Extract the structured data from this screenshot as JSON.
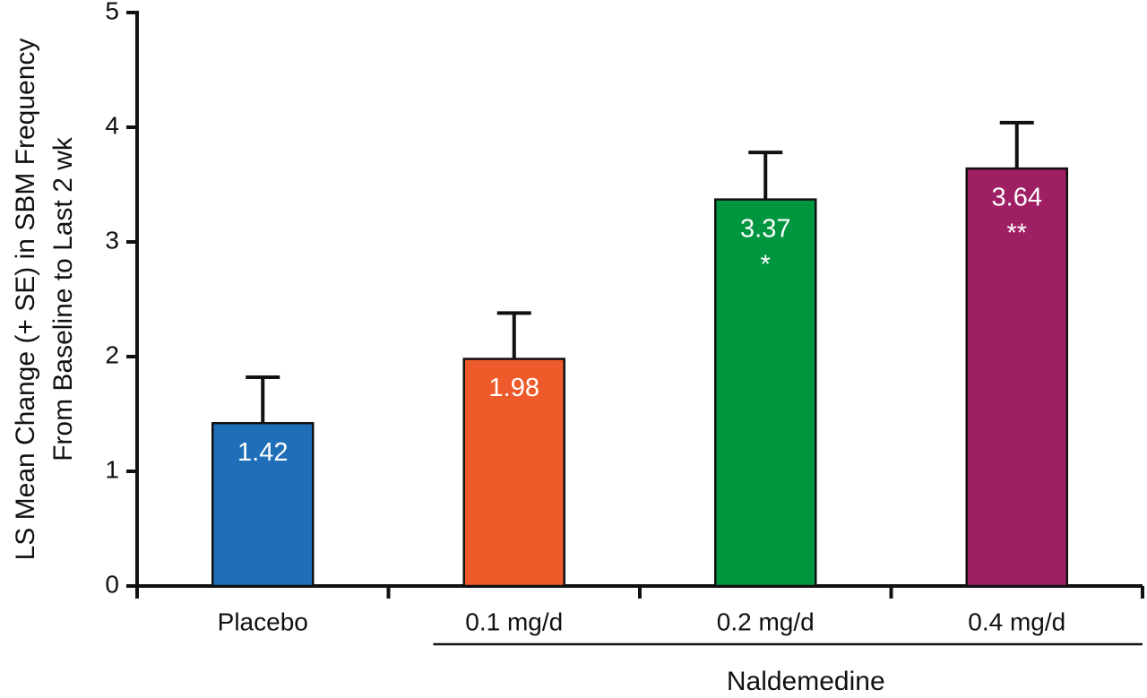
{
  "chart_data": {
    "type": "bar",
    "y_label": [
      "LS Mean Change (+ SE) in SBM Frequency",
      "From Baseline to Last 2 wk"
    ],
    "categories": [
      "Placebo",
      "0.1 mg/d",
      "0.2 mg/d",
      "0.4 mg/d"
    ],
    "values": [
      1.42,
      1.98,
      3.37,
      3.64
    ],
    "errors": [
      0.4,
      0.4,
      0.41,
      0.4
    ],
    "significance": [
      null,
      null,
      "*",
      "**"
    ],
    "colors": [
      "#1f6fb8",
      "#ef5a2a",
      "#00963f",
      "#9e1f63"
    ],
    "group_label": "Naldemedine",
    "ylim": [
      0,
      5
    ],
    "yticks": [
      0,
      1,
      2,
      3,
      4,
      5
    ]
  }
}
